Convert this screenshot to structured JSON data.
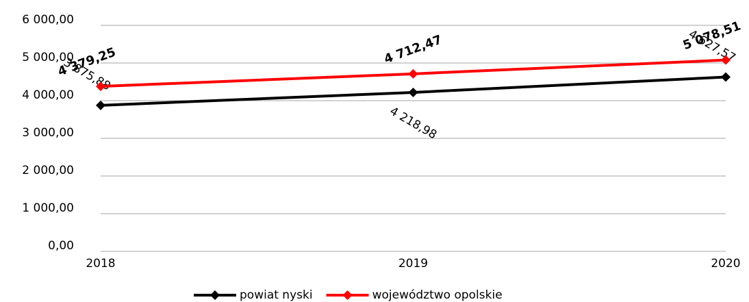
{
  "chart_data": {
    "type": "line",
    "categories": [
      "2018",
      "2019",
      "2020"
    ],
    "series": [
      {
        "name": "powiat nyski",
        "color": "#000000",
        "values": [
          3875.88,
          4218.98,
          4627.57
        ],
        "value_labels": [
          "3 875,88",
          "4 218,98",
          "4 627,57"
        ]
      },
      {
        "name": "województwo opolskie",
        "color": "#ff0000",
        "values": [
          4379.25,
          4712.47,
          5078.51
        ],
        "value_labels": [
          "4 379,25",
          "4 712,47",
          "5 078,51"
        ]
      }
    ],
    "ylim": [
      0,
      6000
    ],
    "yticks": [
      {
        "value": 0,
        "label": "0,00"
      },
      {
        "value": 1000,
        "label": "1 000,00"
      },
      {
        "value": 2000,
        "label": "2 000,00"
      },
      {
        "value": 3000,
        "label": "3 000,00"
      },
      {
        "value": 4000,
        "label": "4 000,00"
      },
      {
        "value": 5000,
        "label": "5 000,00"
      },
      {
        "value": 6000,
        "label": "6 000,00"
      }
    ],
    "grid": true,
    "legend": "bottom"
  }
}
